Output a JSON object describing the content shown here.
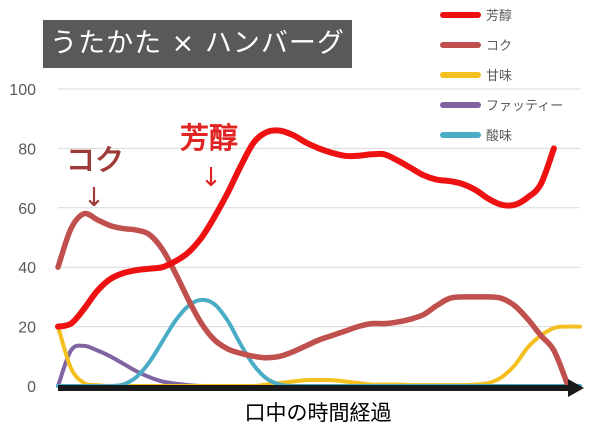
{
  "chart_data": {
    "type": "line",
    "title": "うたかた × ハンバーグ",
    "xlabel": "口中の時間経過",
    "ylabel": "",
    "ylim": [
      0,
      100
    ],
    "yticks": [
      "0",
      "20",
      "40",
      "60",
      "80",
      "100"
    ],
    "grid": true,
    "legend_position": "top-right",
    "x": [
      0,
      0.5,
      1,
      1.5,
      2,
      2.5,
      3,
      3.5,
      4,
      4.5,
      5,
      5.5,
      6,
      6.5,
      7,
      7.5,
      8,
      8.5,
      9,
      9.5,
      10,
      10.5,
      11,
      11.5,
      12,
      12.5,
      13,
      13.5,
      14,
      14.5,
      15,
      15.5,
      16,
      16.5,
      17,
      17.5,
      18,
      18.5,
      19,
      19.5,
      20
    ],
    "series": [
      {
        "name": "芳醇",
        "color": "#ee1111",
        "values": [
          20,
          21,
          26,
          32,
          36,
          38,
          39,
          39.5,
          40,
          42,
          45,
          50,
          57,
          65,
          74,
          82,
          85.5,
          86,
          84.5,
          82,
          80,
          78.5,
          77.5,
          77.5,
          78,
          78,
          76,
          73.5,
          71,
          69.5,
          69,
          68,
          66,
          63,
          61,
          61,
          63.5,
          68,
          80,
          null,
          null
        ]
      },
      {
        "name": "コク",
        "color": "#c0504d",
        "values": [
          40,
          53,
          58,
          56,
          54,
          53,
          52.5,
          51,
          46,
          38,
          29,
          21,
          15.5,
          12.5,
          11,
          10,
          9.5,
          10,
          11.5,
          13.5,
          15.5,
          17,
          18.5,
          20,
          21,
          21,
          21.5,
          22.5,
          24,
          27,
          29.5,
          30,
          30,
          30,
          29.5,
          27,
          22.5,
          17,
          12,
          1,
          null
        ]
      },
      {
        "name": "甘味",
        "color": "#f4c020",
        "values": [
          20,
          6,
          1,
          0.3,
          0,
          0,
          0,
          0,
          0,
          0,
          0,
          0,
          0,
          0,
          0,
          0,
          0.5,
          1,
          1.5,
          2,
          2,
          2,
          1.5,
          1,
          0.5,
          0.5,
          0.5,
          0.3,
          0.3,
          0.3,
          0.3,
          0.3,
          0.5,
          1,
          3,
          7,
          13,
          17,
          19.5,
          20,
          20
        ]
      },
      {
        "name": "ファッティー",
        "color": "#8064a2",
        "values": [
          0,
          12,
          13.5,
          12,
          10,
          7.5,
          5,
          3,
          1.5,
          0.8,
          0.3,
          0,
          0,
          0,
          0,
          0,
          0,
          0,
          0,
          0,
          0,
          0,
          0,
          0,
          0,
          0,
          0,
          0,
          0,
          0,
          0,
          0,
          0,
          0,
          0,
          0,
          0,
          0,
          0,
          0,
          0
        ]
      },
      {
        "name": "酸味",
        "color": "#4bacc6",
        "values": [
          0,
          0,
          0,
          0,
          0,
          0.5,
          3,
          8,
          15,
          22,
          27,
          29,
          27.5,
          22,
          14,
          7,
          2.5,
          0.5,
          0,
          0,
          0,
          0,
          0,
          0,
          0,
          0,
          0,
          0,
          0,
          0,
          0,
          0,
          0,
          0,
          0,
          0,
          0,
          0,
          0,
          0,
          0
        ]
      }
    ],
    "annotations": [
      {
        "text": "コク",
        "arrow": "↓",
        "color": "#9e3b36"
      },
      {
        "text": "芳醇",
        "arrow": "↓",
        "color": "#e02424"
      }
    ]
  }
}
